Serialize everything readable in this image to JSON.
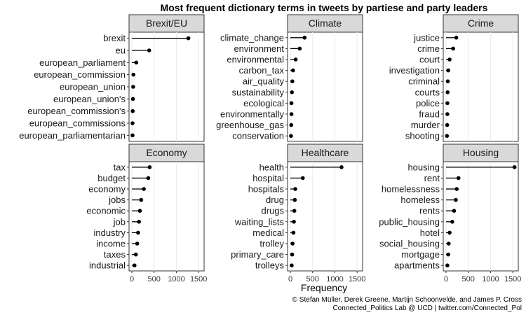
{
  "chart_data": {
    "type": "lollipop",
    "title": "Most frequent dictionary terms in tweets by partiese and party leaders",
    "xlabel": "Frequency",
    "ylabel": "",
    "xlim": [
      0,
      1560
    ],
    "x_ticks": [
      0,
      500,
      1000,
      1500
    ],
    "x_tick_labels": [
      "0",
      "500",
      "1000",
      "1500"
    ],
    "grid": true,
    "caption": [
      "© Stefan Müller, Derek Greene, Martijn Schoonvelde, and James P. Cross",
      "Connected_Politics Lab @ UCD | twitter.com/Connected_Pol"
    ],
    "panels": [
      {
        "name": "Brexit/EU",
        "categories": [
          "brexit",
          "eu",
          "european_parliament",
          "european_commission",
          "european_union",
          "european_union's",
          "european_commission's",
          "european_commissions",
          "european_parliamentarian"
        ],
        "values": [
          1270,
          390,
          100,
          35,
          30,
          25,
          20,
          15,
          15
        ]
      },
      {
        "name": "Climate",
        "categories": [
          "climate_change",
          "environment",
          "environmental",
          "carbon_tax",
          "air_quality",
          "sustainability",
          "ecological",
          "environmentally",
          "greenhouse_gas",
          "conservation"
        ],
        "values": [
          320,
          210,
          120,
          60,
          45,
          35,
          25,
          25,
          20,
          15
        ]
      },
      {
        "name": "Crime",
        "categories": [
          "justice",
          "crime",
          "court",
          "investigation",
          "criminal",
          "courts",
          "police",
          "fraud",
          "murder",
          "shooting"
        ],
        "values": [
          230,
          160,
          80,
          50,
          40,
          35,
          30,
          30,
          25,
          20
        ]
      },
      {
        "name": "Economy",
        "categories": [
          "tax",
          "budget",
          "economy",
          "jobs",
          "economic",
          "job",
          "industry",
          "income",
          "taxes",
          "industrial"
        ],
        "values": [
          400,
          370,
          270,
          210,
          180,
          160,
          140,
          120,
          90,
          60
        ]
      },
      {
        "name": "Healthcare",
        "categories": [
          "health",
          "hospital",
          "hospitals",
          "drug",
          "drugs",
          "waiting_lists",
          "medical",
          "trolley",
          "primary_care",
          "trolleys"
        ],
        "values": [
          1150,
          280,
          110,
          100,
          90,
          80,
          70,
          50,
          40,
          30
        ]
      },
      {
        "name": "Housing",
        "categories": [
          "housing",
          "rent",
          "homelessness",
          "homeless",
          "rents",
          "public_housing",
          "hotel",
          "social_housing",
          "mortgage",
          "apartments"
        ],
        "values": [
          1540,
          280,
          240,
          220,
          180,
          140,
          80,
          60,
          50,
          30
        ]
      }
    ]
  }
}
